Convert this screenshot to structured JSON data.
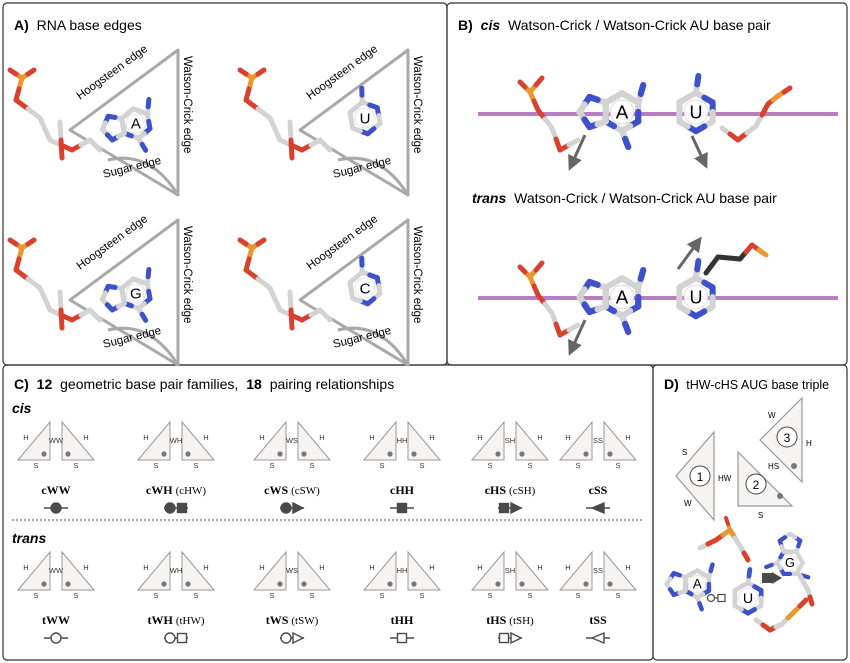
{
  "panel_a": {
    "letter": "A)",
    "title": "RNA base edges",
    "hoogsteen_edge": "Hoogsteen edge",
    "watson_crick_edge": "Watson-Crick edge",
    "sugar_edge": "Sugar edge",
    "bases": [
      "A",
      "U",
      "G",
      "C"
    ]
  },
  "panel_b": {
    "letter": "B)",
    "cis_word": "cis",
    "cis_rest": "Watson-Crick / Watson-Crick AU base pair",
    "trans_word": "trans",
    "trans_rest": "Watson-Crick / Watson-Crick AU base pair",
    "base_a": "A",
    "base_u": "U"
  },
  "panel_c": {
    "letter": "C)",
    "n_families": "12",
    "families_text": "geometric base pair families,",
    "n_relationships": "18",
    "relationships_text": "pairing relationships",
    "cis_label": "cis",
    "trans_label": "trans",
    "edge_letters": {
      "w": "W",
      "h": "H",
      "s": "S"
    },
    "cis_families": [
      {
        "name": "cWW",
        "alt": "",
        "pair_label": "WW"
      },
      {
        "name": "cWH",
        "alt": "(cHW)",
        "pair_label": "WH"
      },
      {
        "name": "cWS",
        "alt": "(cSW)",
        "pair_label": "WS"
      },
      {
        "name": "cHH",
        "alt": "",
        "pair_label": "HH"
      },
      {
        "name": "cHS",
        "alt": "(cSH)",
        "pair_label": "SH"
      },
      {
        "name": "cSS",
        "alt": "",
        "pair_label": "SS"
      }
    ],
    "trans_families": [
      {
        "name": "tWW",
        "alt": "",
        "pair_label": "WW"
      },
      {
        "name": "tWH",
        "alt": "(tHW)",
        "pair_label": "WH"
      },
      {
        "name": "tWS",
        "alt": "(tSW)",
        "pair_label": "WS"
      },
      {
        "name": "tHH",
        "alt": "",
        "pair_label": "HH"
      },
      {
        "name": "tHS",
        "alt": "(tSH)",
        "pair_label": "SH"
      },
      {
        "name": "tSS",
        "alt": "",
        "pair_label": "SS"
      }
    ]
  },
  "panel_d": {
    "letter": "D)",
    "title": "tHW-cHS AUG base triple",
    "nucleotides": [
      "1",
      "2",
      "3"
    ],
    "hw_label": "HW",
    "hs_label": "HS",
    "edge_letters": {
      "s": "S",
      "w": "W",
      "h": "H"
    },
    "bases": [
      "A",
      "U",
      "G"
    ]
  },
  "colors": {
    "frame": "#333333",
    "edge_gray": "#a9a9a9",
    "triangle_fill": "#f6f3f3",
    "triangle_stroke": "#999999",
    "stacking_plane": "#b77fc1",
    "nitrogen": "#3f51c8",
    "oxygen": "#d9402e",
    "phosphorus": "#e9972e",
    "carbon": "#d3d3d3",
    "symbol": "#4a4a4a"
  }
}
